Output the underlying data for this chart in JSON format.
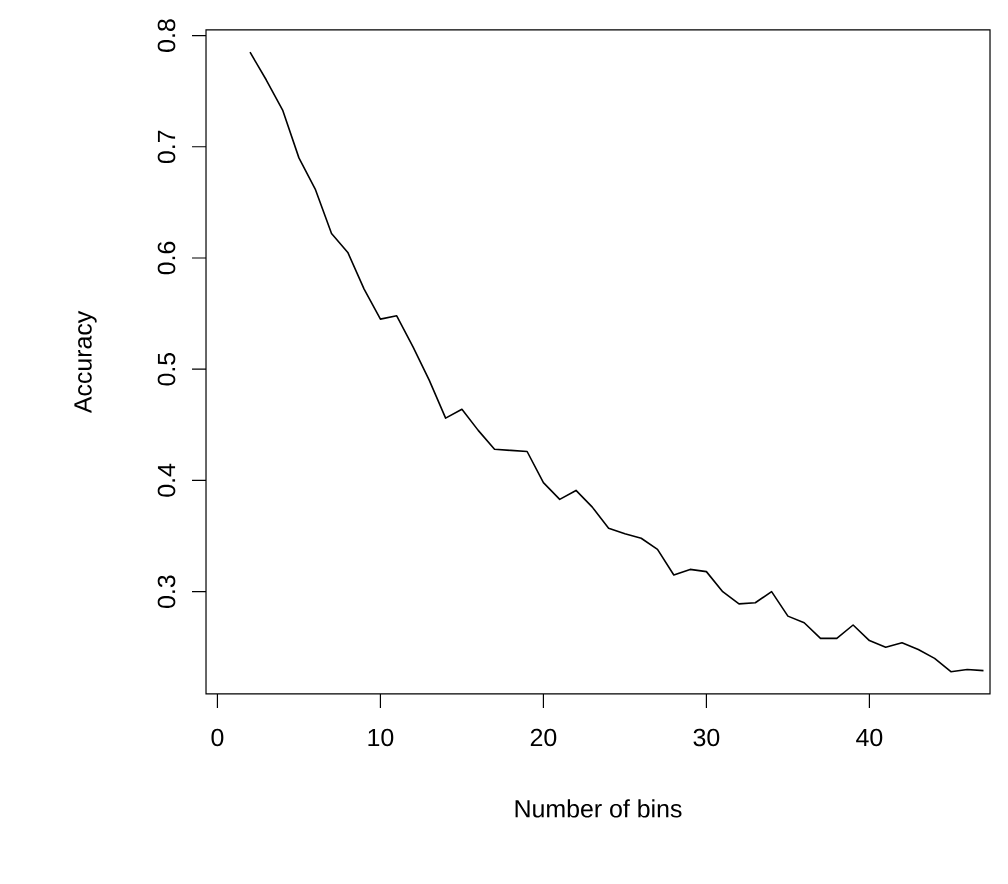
{
  "chart_data": {
    "type": "line",
    "xlabel": "Number of bins",
    "ylabel": "Accuracy",
    "x": [
      2,
      3,
      4,
      5,
      6,
      7,
      8,
      9,
      10,
      11,
      12,
      13,
      14,
      15,
      16,
      17,
      18,
      19,
      20,
      21,
      22,
      23,
      24,
      25,
      26,
      27,
      28,
      29,
      30,
      31,
      32,
      33,
      34,
      35,
      36,
      37,
      38,
      39,
      40,
      41,
      42,
      43,
      44,
      45,
      46,
      47
    ],
    "series": [
      {
        "color": "#000000",
        "values": [
          0.785,
          0.76,
          0.733,
          0.69,
          0.662,
          0.622,
          0.605,
          0.572,
          0.545,
          0.548,
          0.52,
          0.49,
          0.456,
          0.464,
          0.445,
          0.428,
          0.427,
          0.426,
          0.398,
          0.383,
          0.391,
          0.376,
          0.357,
          0.352,
          0.348,
          0.338,
          0.315,
          0.32,
          0.318,
          0.3,
          0.289,
          0.29,
          0.3,
          0.278,
          0.272,
          0.258,
          0.258,
          0.27,
          0.256,
          0.25,
          0.254,
          0.248,
          0.24,
          0.228,
          0.23,
          0.229
        ]
      }
    ],
    "xlim": [
      -0.7,
      47.4
    ],
    "ylim": [
      0.208,
      0.805
    ],
    "xticks": [
      0,
      10,
      20,
      30,
      40
    ],
    "yticks": [
      0.3,
      0.4,
      0.5,
      0.6,
      0.7,
      0.8
    ],
    "grid": false,
    "marker": "none",
    "line_style": "solid"
  }
}
